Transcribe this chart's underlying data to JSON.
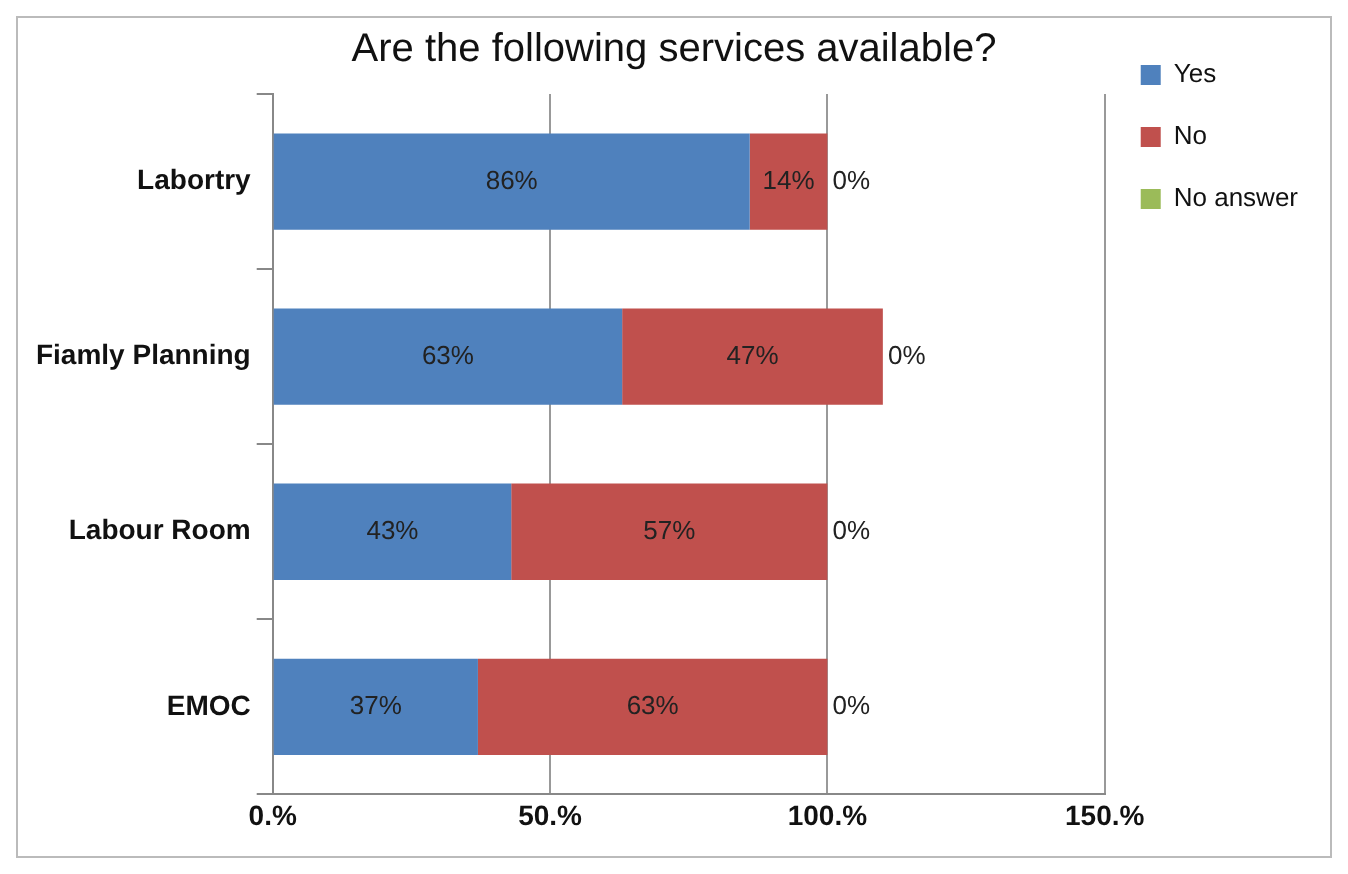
{
  "chart_data": {
    "type": "bar",
    "orientation": "horizontal",
    "stacked": true,
    "title": "Are the following services available?",
    "categories": [
      "Labortry",
      "Fiamly Planning",
      "Labour Room",
      "EMOC"
    ],
    "series": [
      {
        "name": "Yes",
        "color": "#4f81bd",
        "values": [
          86,
          63,
          43,
          37
        ],
        "value_labels": [
          "86%",
          "63%",
          "43%",
          "37%"
        ]
      },
      {
        "name": "No",
        "color": "#c0504d",
        "values": [
          14,
          47,
          57,
          63
        ],
        "value_labels": [
          "14%",
          "47%",
          "57%",
          "63%"
        ]
      },
      {
        "name": "No answer",
        "color": "#9bbb59",
        "values": [
          0,
          0,
          0,
          0
        ],
        "value_labels": [
          "0%",
          "0%",
          "0%",
          "0%"
        ]
      }
    ],
    "xlim": [
      0,
      150
    ],
    "xticks": [
      {
        "value": 0,
        "label": "0.%"
      },
      {
        "value": 50,
        "label": "50.%"
      },
      {
        "value": 100,
        "label": "100.%"
      },
      {
        "value": 150,
        "label": "150.%"
      }
    ],
    "grid": "x",
    "legend": "right"
  }
}
